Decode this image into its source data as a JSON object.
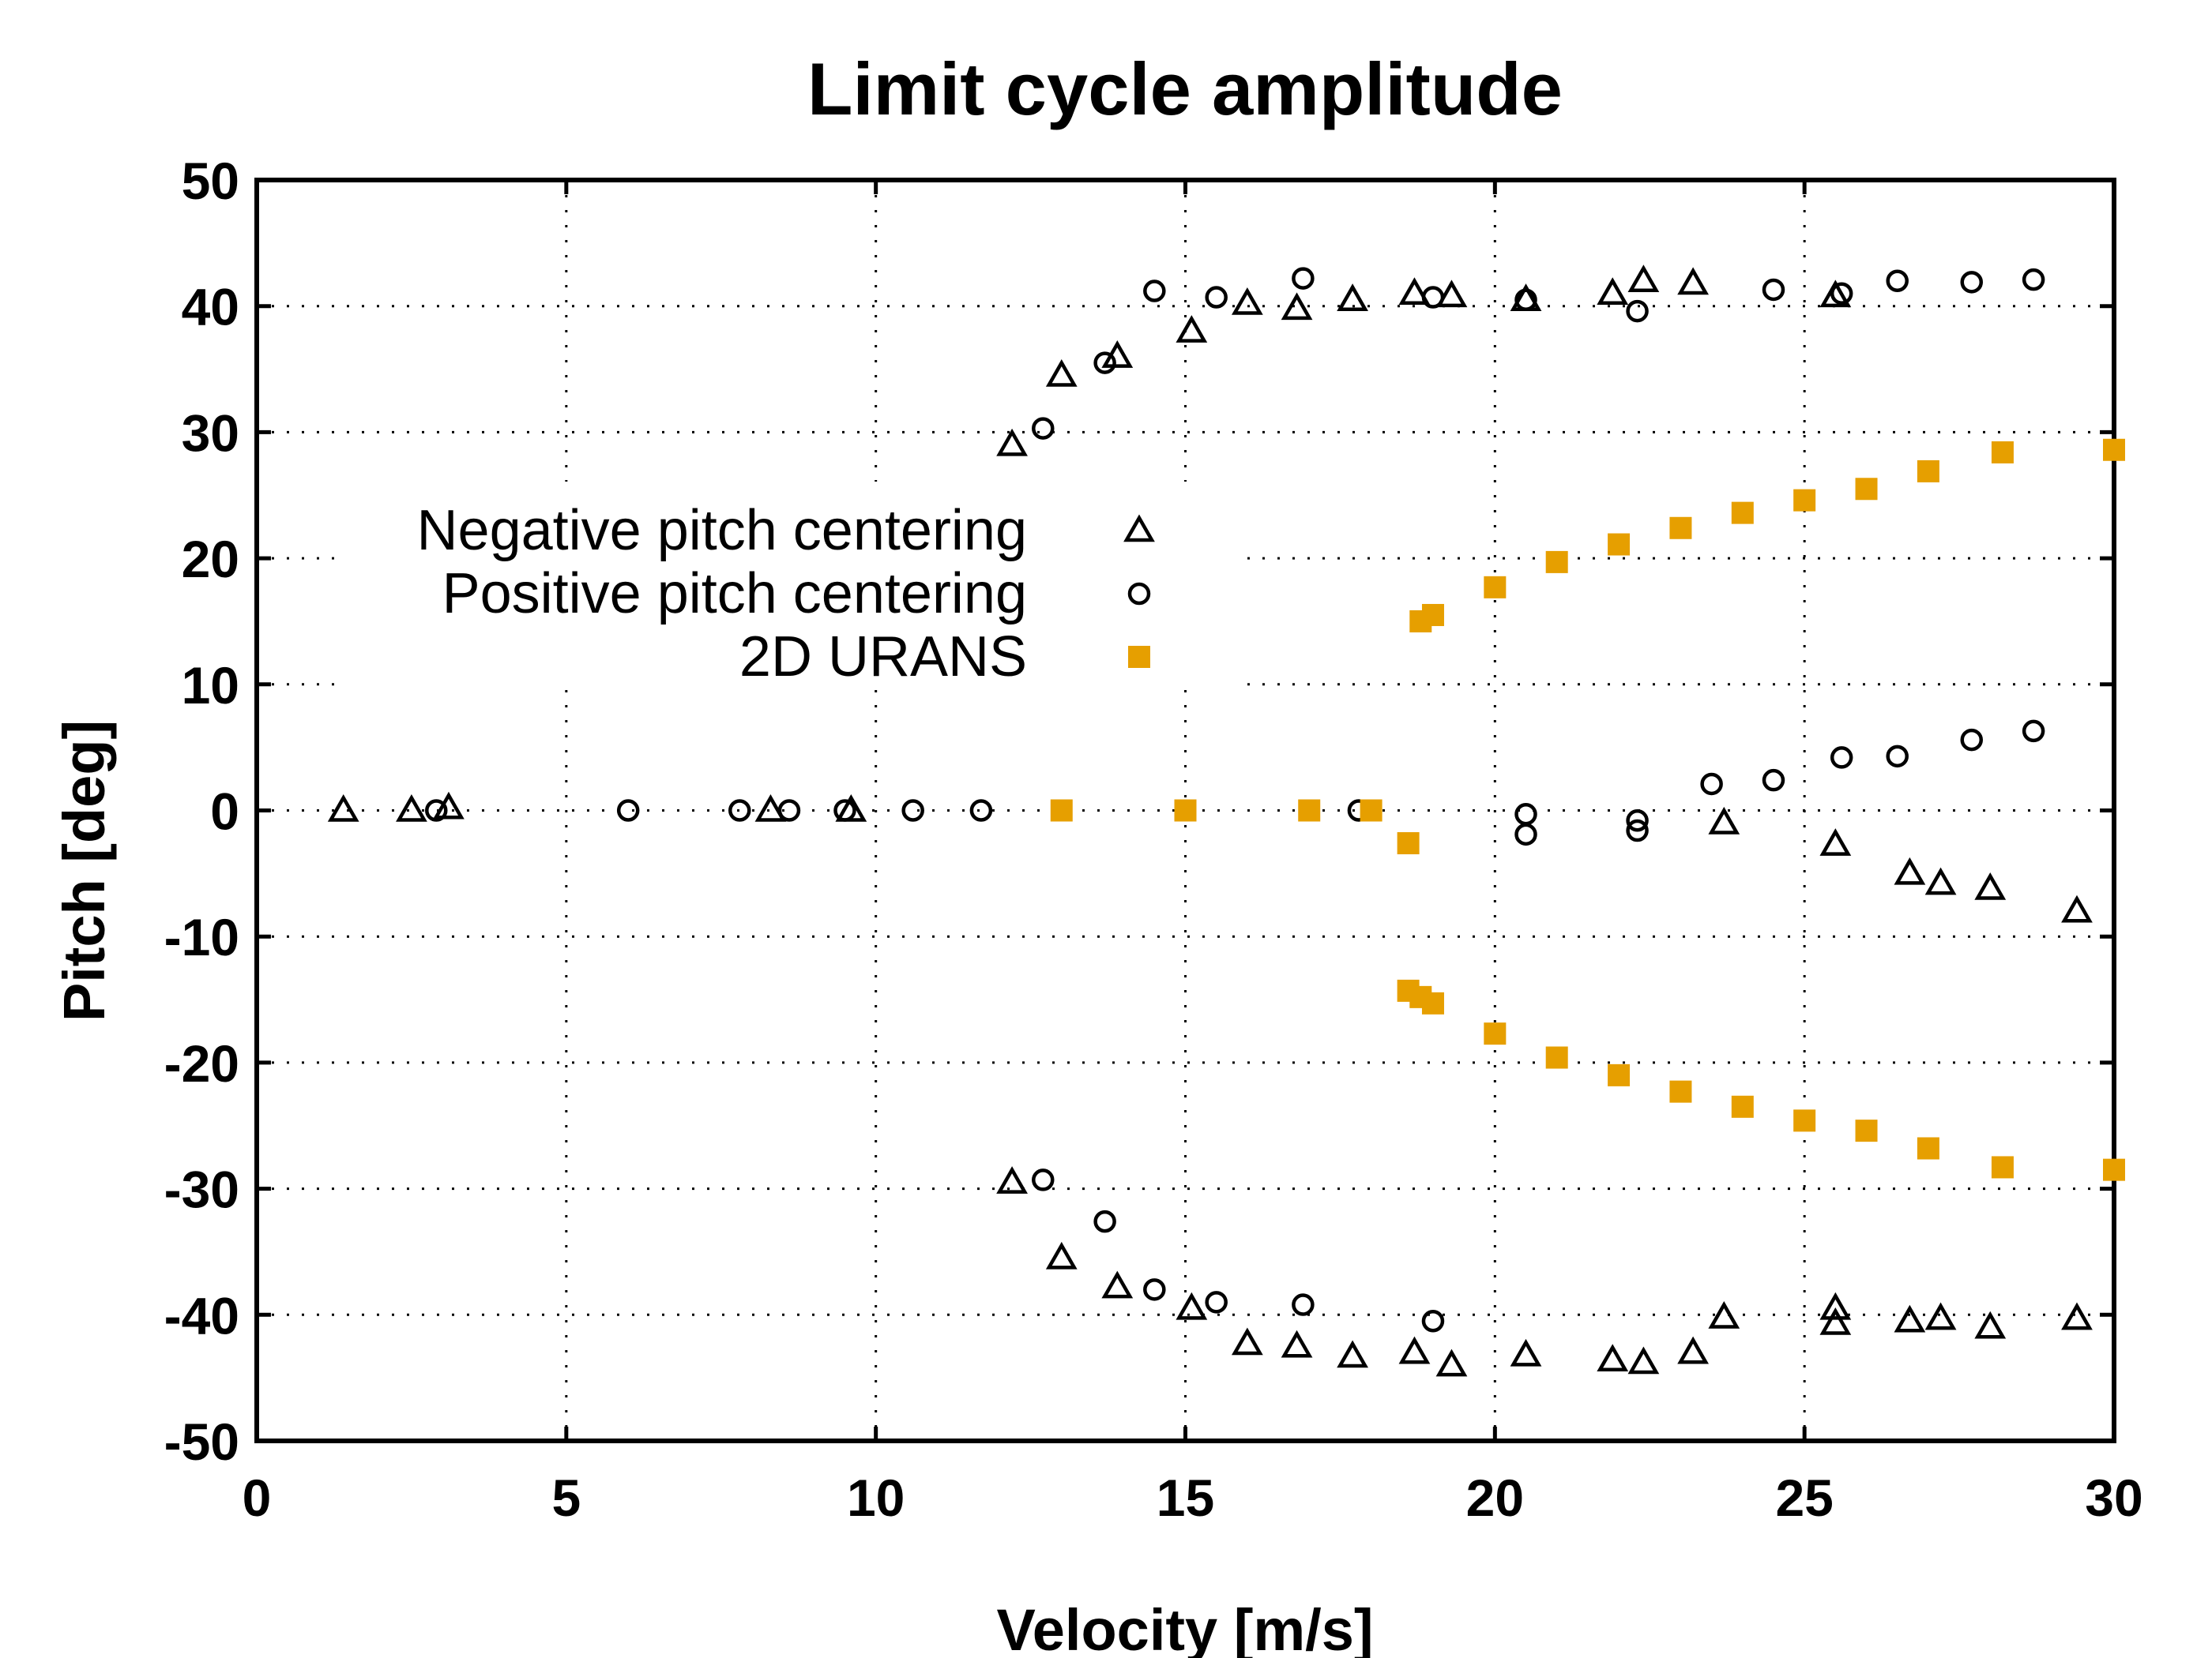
{
  "chart_data": {
    "type": "scatter",
    "title": "Limit cycle amplitude",
    "xlabel": "Velocity [m/s]",
    "ylabel": "Pitch [deg]",
    "xlim": [
      0,
      30
    ],
    "ylim": [
      -50,
      50
    ],
    "xticks": [
      0,
      5,
      10,
      15,
      20,
      25,
      30
    ],
    "xtick_labels": [
      "0",
      "5",
      "10",
      "15",
      "20",
      "25",
      "30"
    ],
    "yticks": [
      50,
      40,
      30,
      20,
      10,
      0,
      -10,
      -20,
      -30,
      -40,
      -50
    ],
    "ytick_labels": [
      "50",
      "40",
      "30",
      "20",
      "10",
      "0",
      "-10",
      "-20",
      "-30",
      "-40",
      "-50"
    ],
    "grid": true,
    "legend_position": "middle-left",
    "series": [
      {
        "name": "Negative pitch centering",
        "marker": "triangle-open",
        "color": "#000000",
        "points": [
          [
            1.4,
            0
          ],
          [
            2.5,
            0
          ],
          [
            3.1,
            0.2
          ],
          [
            8.3,
            0
          ],
          [
            9.6,
            0
          ],
          [
            12.2,
            29
          ],
          [
            13.0,
            34.5
          ],
          [
            13.9,
            36
          ],
          [
            15.1,
            38
          ],
          [
            16.0,
            40.2
          ],
          [
            16.8,
            39.8
          ],
          [
            17.7,
            40.5
          ],
          [
            18.7,
            41
          ],
          [
            19.3,
            40.8
          ],
          [
            20.5,
            40.5
          ],
          [
            21.9,
            41
          ],
          [
            22.4,
            42
          ],
          [
            23.2,
            41.8
          ],
          [
            25.5,
            40.8
          ],
          [
            12.2,
            -29.5
          ],
          [
            13.0,
            -35.5
          ],
          [
            13.9,
            -37.8
          ],
          [
            15.1,
            -39.5
          ],
          [
            16.0,
            -42.3
          ],
          [
            16.8,
            -42.5
          ],
          [
            17.7,
            -43.3
          ],
          [
            18.7,
            -43
          ],
          [
            19.3,
            -44
          ],
          [
            20.5,
            -43.2
          ],
          [
            21.9,
            -43.6
          ],
          [
            22.4,
            -43.8
          ],
          [
            23.2,
            -43
          ],
          [
            23.7,
            -40.2
          ],
          [
            25.5,
            -39.5
          ],
          [
            25.5,
            -40.7
          ],
          [
            26.7,
            -40.5
          ],
          [
            27.2,
            -40.3
          ],
          [
            28.0,
            -41
          ],
          [
            29.4,
            -40.3
          ],
          [
            23.7,
            -1
          ],
          [
            25.5,
            -2.7
          ],
          [
            26.7,
            -5
          ],
          [
            27.2,
            -5.8
          ],
          [
            28.0,
            -6.2
          ],
          [
            29.4,
            -8
          ]
        ]
      },
      {
        "name": "Positive pitch centering",
        "marker": "circle-open",
        "color": "#000000",
        "points": [
          [
            2.9,
            0
          ],
          [
            6.0,
            0
          ],
          [
            7.8,
            0
          ],
          [
            8.6,
            0
          ],
          [
            9.5,
            0
          ],
          [
            10.6,
            0
          ],
          [
            11.7,
            0
          ],
          [
            17.8,
            0
          ],
          [
            12.7,
            30.3
          ],
          [
            13.7,
            35.5
          ],
          [
            14.5,
            41.2
          ],
          [
            15.5,
            40.7
          ],
          [
            16.9,
            42.2
          ],
          [
            19.0,
            40.7
          ],
          [
            20.5,
            40.5
          ],
          [
            22.3,
            39.6
          ],
          [
            24.5,
            41.3
          ],
          [
            25.6,
            41
          ],
          [
            26.5,
            42
          ],
          [
            27.7,
            41.9
          ],
          [
            28.7,
            42.1
          ],
          [
            12.7,
            -29.3
          ],
          [
            13.7,
            -32.6
          ],
          [
            14.5,
            -38
          ],
          [
            15.5,
            -39
          ],
          [
            16.9,
            -39.2
          ],
          [
            19.0,
            -40.5
          ],
          [
            20.5,
            -0.3
          ],
          [
            20.5,
            -1.9
          ],
          [
            22.3,
            -0.8
          ],
          [
            22.3,
            -1.6
          ],
          [
            23.5,
            2.1
          ],
          [
            24.5,
            2.4
          ],
          [
            25.6,
            4.2
          ],
          [
            26.5,
            4.3
          ],
          [
            27.7,
            5.6
          ],
          [
            28.7,
            6.3
          ]
        ]
      },
      {
        "name": "2D URANS",
        "marker": "square-filled",
        "color": "#E69F00",
        "points": [
          [
            13,
            0
          ],
          [
            15,
            0
          ],
          [
            17,
            0
          ],
          [
            18,
            0
          ],
          [
            18.6,
            -2.6
          ],
          [
            18.8,
            15
          ],
          [
            19.0,
            15.5
          ],
          [
            20,
            17.7
          ],
          [
            21,
            19.7
          ],
          [
            22,
            21.1
          ],
          [
            23,
            22.4
          ],
          [
            24,
            23.6
          ],
          [
            25,
            24.6
          ],
          [
            26,
            25.5
          ],
          [
            27,
            26.9
          ],
          [
            28.2,
            28.4
          ],
          [
            30,
            28.6
          ],
          [
            18.6,
            -14.3
          ],
          [
            18.8,
            -14.8
          ],
          [
            19.0,
            -15.3
          ],
          [
            20,
            -17.7
          ],
          [
            21,
            -19.6
          ],
          [
            22,
            -21
          ],
          [
            23,
            -22.3
          ],
          [
            24,
            -23.5
          ],
          [
            25,
            -24.6
          ],
          [
            26,
            -25.4
          ],
          [
            27,
            -26.8
          ],
          [
            28.2,
            -28.3
          ],
          [
            30,
            -28.5
          ]
        ]
      }
    ]
  }
}
